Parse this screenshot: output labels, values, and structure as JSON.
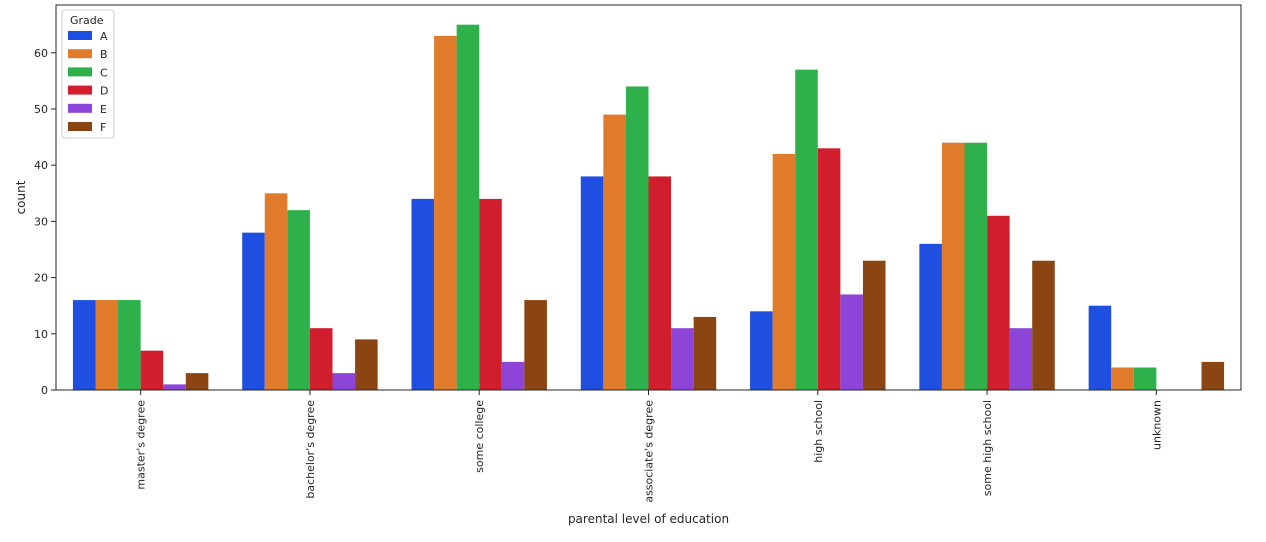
{
  "chart_data": {
    "type": "bar",
    "title": "",
    "xlabel": "parental level of education",
    "ylabel": "count",
    "ylim": [
      0,
      68.5
    ],
    "yticks": [
      0,
      10,
      20,
      30,
      40,
      50,
      60
    ],
    "grid": false,
    "legend": {
      "title": "Grade",
      "placement": "top-left"
    },
    "categories": [
      "master's degree",
      "bachelor's degree",
      "some college",
      "associate's degree",
      "high school",
      "some high school",
      "unknown"
    ],
    "series": [
      {
        "name": "A",
        "color": "#1f4fe0",
        "values": [
          16,
          28,
          34,
          38,
          14,
          26,
          15
        ]
      },
      {
        "name": "B",
        "color": "#e07b2c",
        "values": [
          16,
          35,
          63,
          49,
          42,
          44,
          4
        ]
      },
      {
        "name": "C",
        "color": "#2eb04a",
        "values": [
          16,
          32,
          65,
          54,
          57,
          44,
          4
        ]
      },
      {
        "name": "D",
        "color": "#d01e2c",
        "values": [
          7,
          11,
          34,
          38,
          43,
          31,
          0
        ]
      },
      {
        "name": "E",
        "color": "#8c45d6",
        "values": [
          1,
          3,
          5,
          11,
          17,
          11,
          0
        ]
      },
      {
        "name": "F",
        "color": "#8b4513",
        "values": [
          3,
          9,
          16,
          13,
          23,
          23,
          5
        ]
      }
    ]
  }
}
